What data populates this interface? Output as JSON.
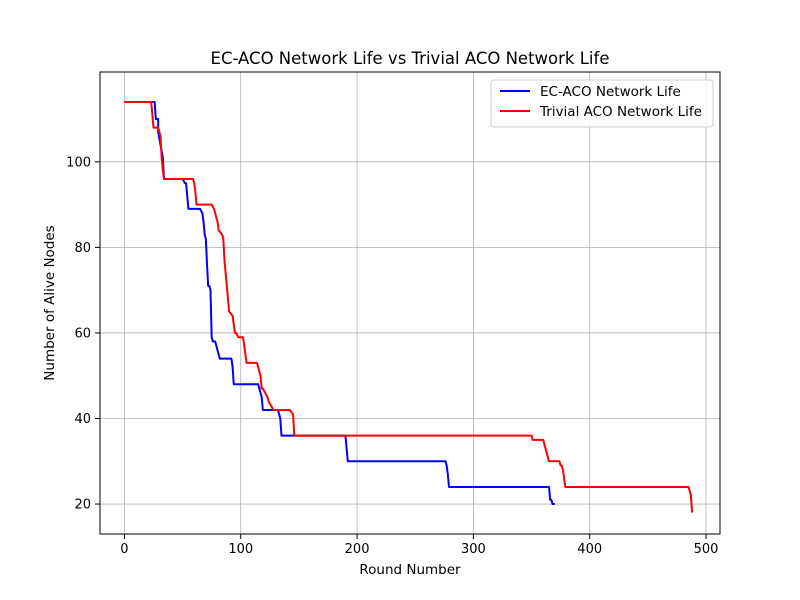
{
  "chart_data": {
    "type": "line",
    "title": "EC-ACO Network Life vs Trivial ACO Network Life",
    "xlabel": "Round Number",
    "ylabel": "Number of Alive Nodes",
    "xlim": [
      -21,
      512
    ],
    "ylim": [
      13,
      121
    ],
    "xticks": [
      0,
      100,
      200,
      300,
      400,
      500
    ],
    "yticks": [
      20,
      40,
      60,
      80,
      100
    ],
    "grid": true,
    "legend_position": "top-right",
    "series": [
      {
        "name": "EC-ACO Network Life",
        "color": "#0000ff",
        "x": [
          0,
          26,
          27,
          29,
          29,
          33,
          34,
          36,
          50,
          52,
          53,
          54,
          55,
          65,
          67,
          68,
          69,
          70,
          71,
          72,
          73,
          74,
          75,
          76,
          78,
          80,
          82,
          83,
          92,
          93,
          94,
          95,
          96,
          97,
          115,
          116,
          117,
          118,
          119,
          120,
          121,
          132,
          133,
          134,
          135,
          136,
          137,
          190,
          191,
          192,
          193,
          194,
          276,
          277,
          278,
          279,
          280,
          281,
          364,
          365,
          366,
          367,
          368,
          369,
          370
        ],
        "y": [
          114,
          114,
          110,
          110,
          107,
          101,
          96,
          96,
          96,
          95,
          95,
          92,
          89,
          89,
          88,
          86,
          83,
          82,
          76,
          71,
          71,
          70,
          59,
          58,
          58,
          56,
          54,
          54,
          54,
          52,
          48,
          48,
          48,
          48,
          48,
          47,
          46,
          45,
          42,
          42,
          42,
          42,
          41,
          40,
          36,
          36,
          36,
          36,
          33,
          30,
          30,
          30,
          30,
          29,
          27,
          24,
          24,
          24,
          24,
          24,
          21,
          21,
          20,
          20,
          20
        ]
      },
      {
        "name": "Trivial ACO Network Life",
        "color": "#ff0000",
        "x": [
          0,
          23,
          25,
          29,
          31,
          32,
          33,
          34,
          59,
          60,
          61,
          62,
          75,
          77,
          78,
          80,
          81,
          84,
          85,
          86,
          88,
          90,
          93,
          95,
          96,
          98,
          102,
          103,
          104,
          105,
          114,
          115,
          116,
          117,
          118,
          119,
          121,
          123,
          124,
          128,
          142,
          145,
          146,
          350,
          351,
          360,
          361,
          362,
          363,
          364,
          365,
          366,
          367,
          374,
          375,
          376,
          377,
          378,
          379,
          380,
          483,
          485,
          486,
          487,
          488
        ],
        "y": [
          114,
          114,
          108,
          108,
          106,
          101,
          98,
          96,
          96,
          95,
          93,
          90,
          90,
          89,
          88,
          86,
          84,
          83,
          82,
          77,
          71,
          65,
          64,
          60,
          60,
          59,
          59,
          57,
          55,
          53,
          53,
          52,
          51,
          50,
          47,
          47,
          46,
          45,
          44,
          42,
          42,
          41,
          36,
          36,
          35,
          35,
          34,
          33,
          32,
          31,
          30,
          30,
          30,
          30,
          29,
          29,
          28,
          26,
          24,
          24,
          24,
          24,
          23,
          22,
          18
        ]
      }
    ]
  }
}
